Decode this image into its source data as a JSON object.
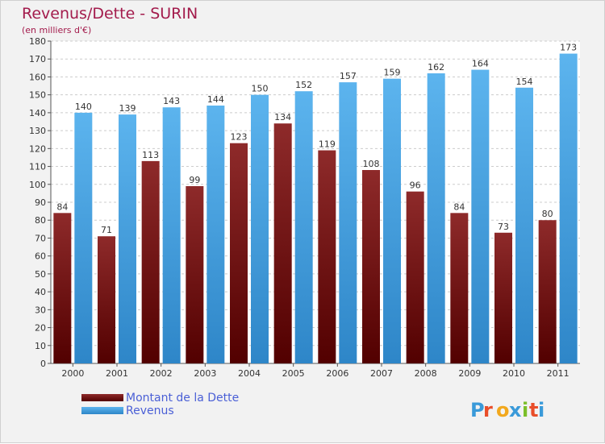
{
  "chart_data": {
    "type": "bar",
    "title": "Revenus/Dette - SURIN",
    "subtitle": "(en milliers d'€)",
    "categories": [
      "2000",
      "2001",
      "2002",
      "2003",
      "2004",
      "2005",
      "2006",
      "2007",
      "2008",
      "2009",
      "2010",
      "2011"
    ],
    "series": [
      {
        "name": "Montant de la Dette",
        "values": [
          84,
          71,
          113,
          99,
          123,
          134,
          119,
          108,
          96,
          84,
          73,
          80
        ],
        "color": "#7a1515"
      },
      {
        "name": "Revenus",
        "values": [
          140,
          139,
          143,
          144,
          150,
          152,
          157,
          159,
          162,
          164,
          154,
          173
        ],
        "color": "#4aa6e6"
      }
    ],
    "ylim": [
      0,
      180
    ],
    "ytick_step": 10,
    "grid": true,
    "legend": "bottom-left"
  },
  "logo": {
    "text": "Proxiti"
  },
  "colors": {
    "title": "#a31b4c",
    "background": "#f2f2f2",
    "plot_background": "#ffffff",
    "grid": "#cccccc"
  }
}
